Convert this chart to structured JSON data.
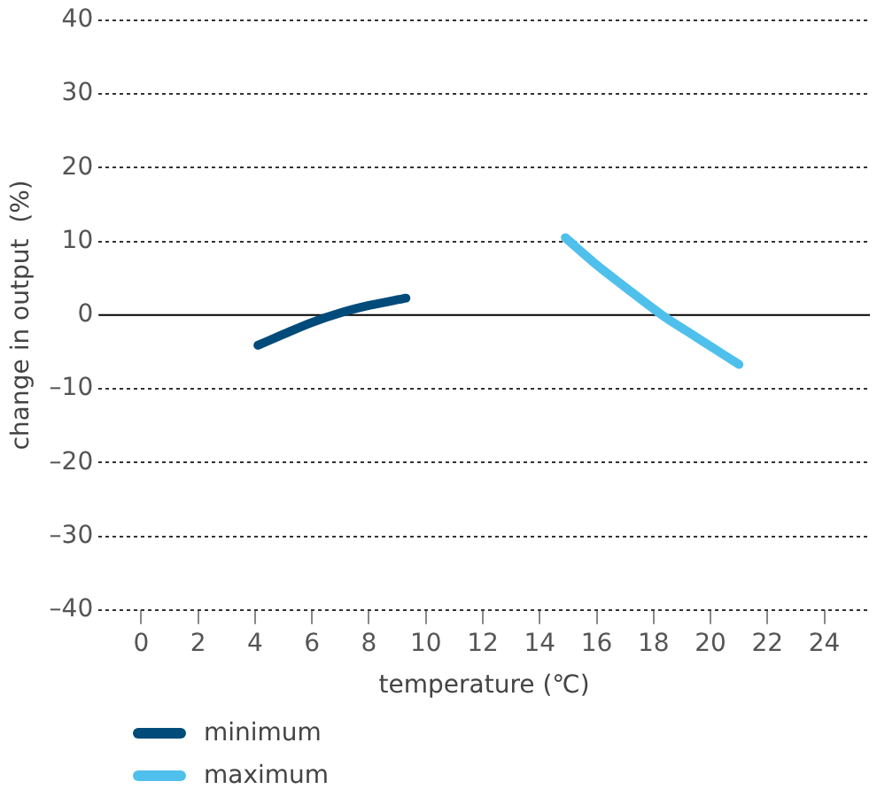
{
  "chart_data": {
    "type": "line",
    "xlabel": "temperature (℃)",
    "ylabel": "change in output  (%)",
    "xlim": [
      -1.5,
      25.6
    ],
    "xticks": [
      0,
      2,
      4,
      6,
      8,
      10,
      12,
      14,
      16,
      18,
      20,
      22,
      24
    ],
    "ylim": [
      -40,
      40
    ],
    "yticks": [
      {
        "value": -40,
        "label": "–40"
      },
      {
        "value": -30,
        "label": "–30"
      },
      {
        "value": -20,
        "label": "–20"
      },
      {
        "value": -10,
        "label": "–10"
      },
      0,
      10,
      20,
      30,
      40
    ],
    "grid": "y",
    "legend": "bottom left",
    "marker": "none",
    "line_style": "solid",
    "ref_lines": [
      {
        "axis": "y",
        "value": 0,
        "color": "#000000"
      }
    ],
    "series": [
      {
        "name": "minimum",
        "color": "#004b7a",
        "x": [
          4.1,
          5,
          6,
          7,
          8,
          9.3
        ],
        "values": [
          -4.1,
          -2.6,
          -1,
          0.3,
          1.3,
          2.3
        ]
      },
      {
        "name": "maximum",
        "color": "#4fc0ec",
        "x": [
          14.9,
          16,
          17,
          18.3,
          19.5,
          21
        ],
        "values": [
          10.5,
          6.8,
          3.8,
          0,
          -3,
          -6.7
        ]
      }
    ]
  }
}
